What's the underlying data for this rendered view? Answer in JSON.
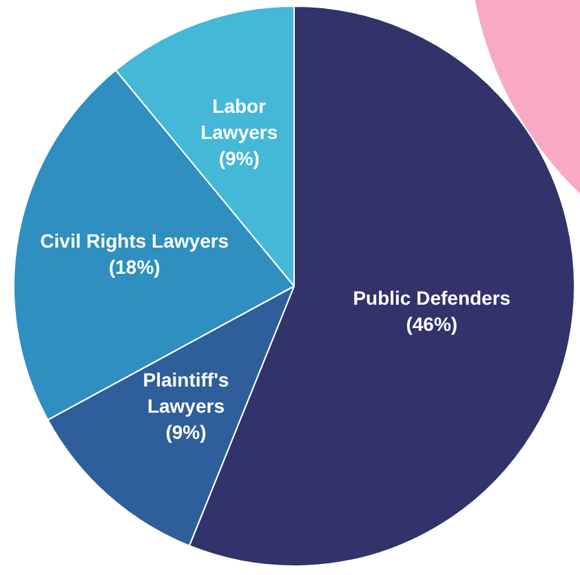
{
  "chart_data": {
    "type": "pie",
    "categories": [
      "Public Defenders",
      "Plaintiff's Lawyers",
      "Civil Rights Lawyers",
      "Labor Lawyers"
    ],
    "values": [
      46,
      9,
      18,
      9
    ],
    "colors": [
      "#31336a",
      "#2f5f9a",
      "#2e8fc0",
      "#45b8d8"
    ],
    "value_labels": [
      "(46%)",
      "(9%)",
      "(18%)",
      "(9%)"
    ],
    "legend": false
  }
}
